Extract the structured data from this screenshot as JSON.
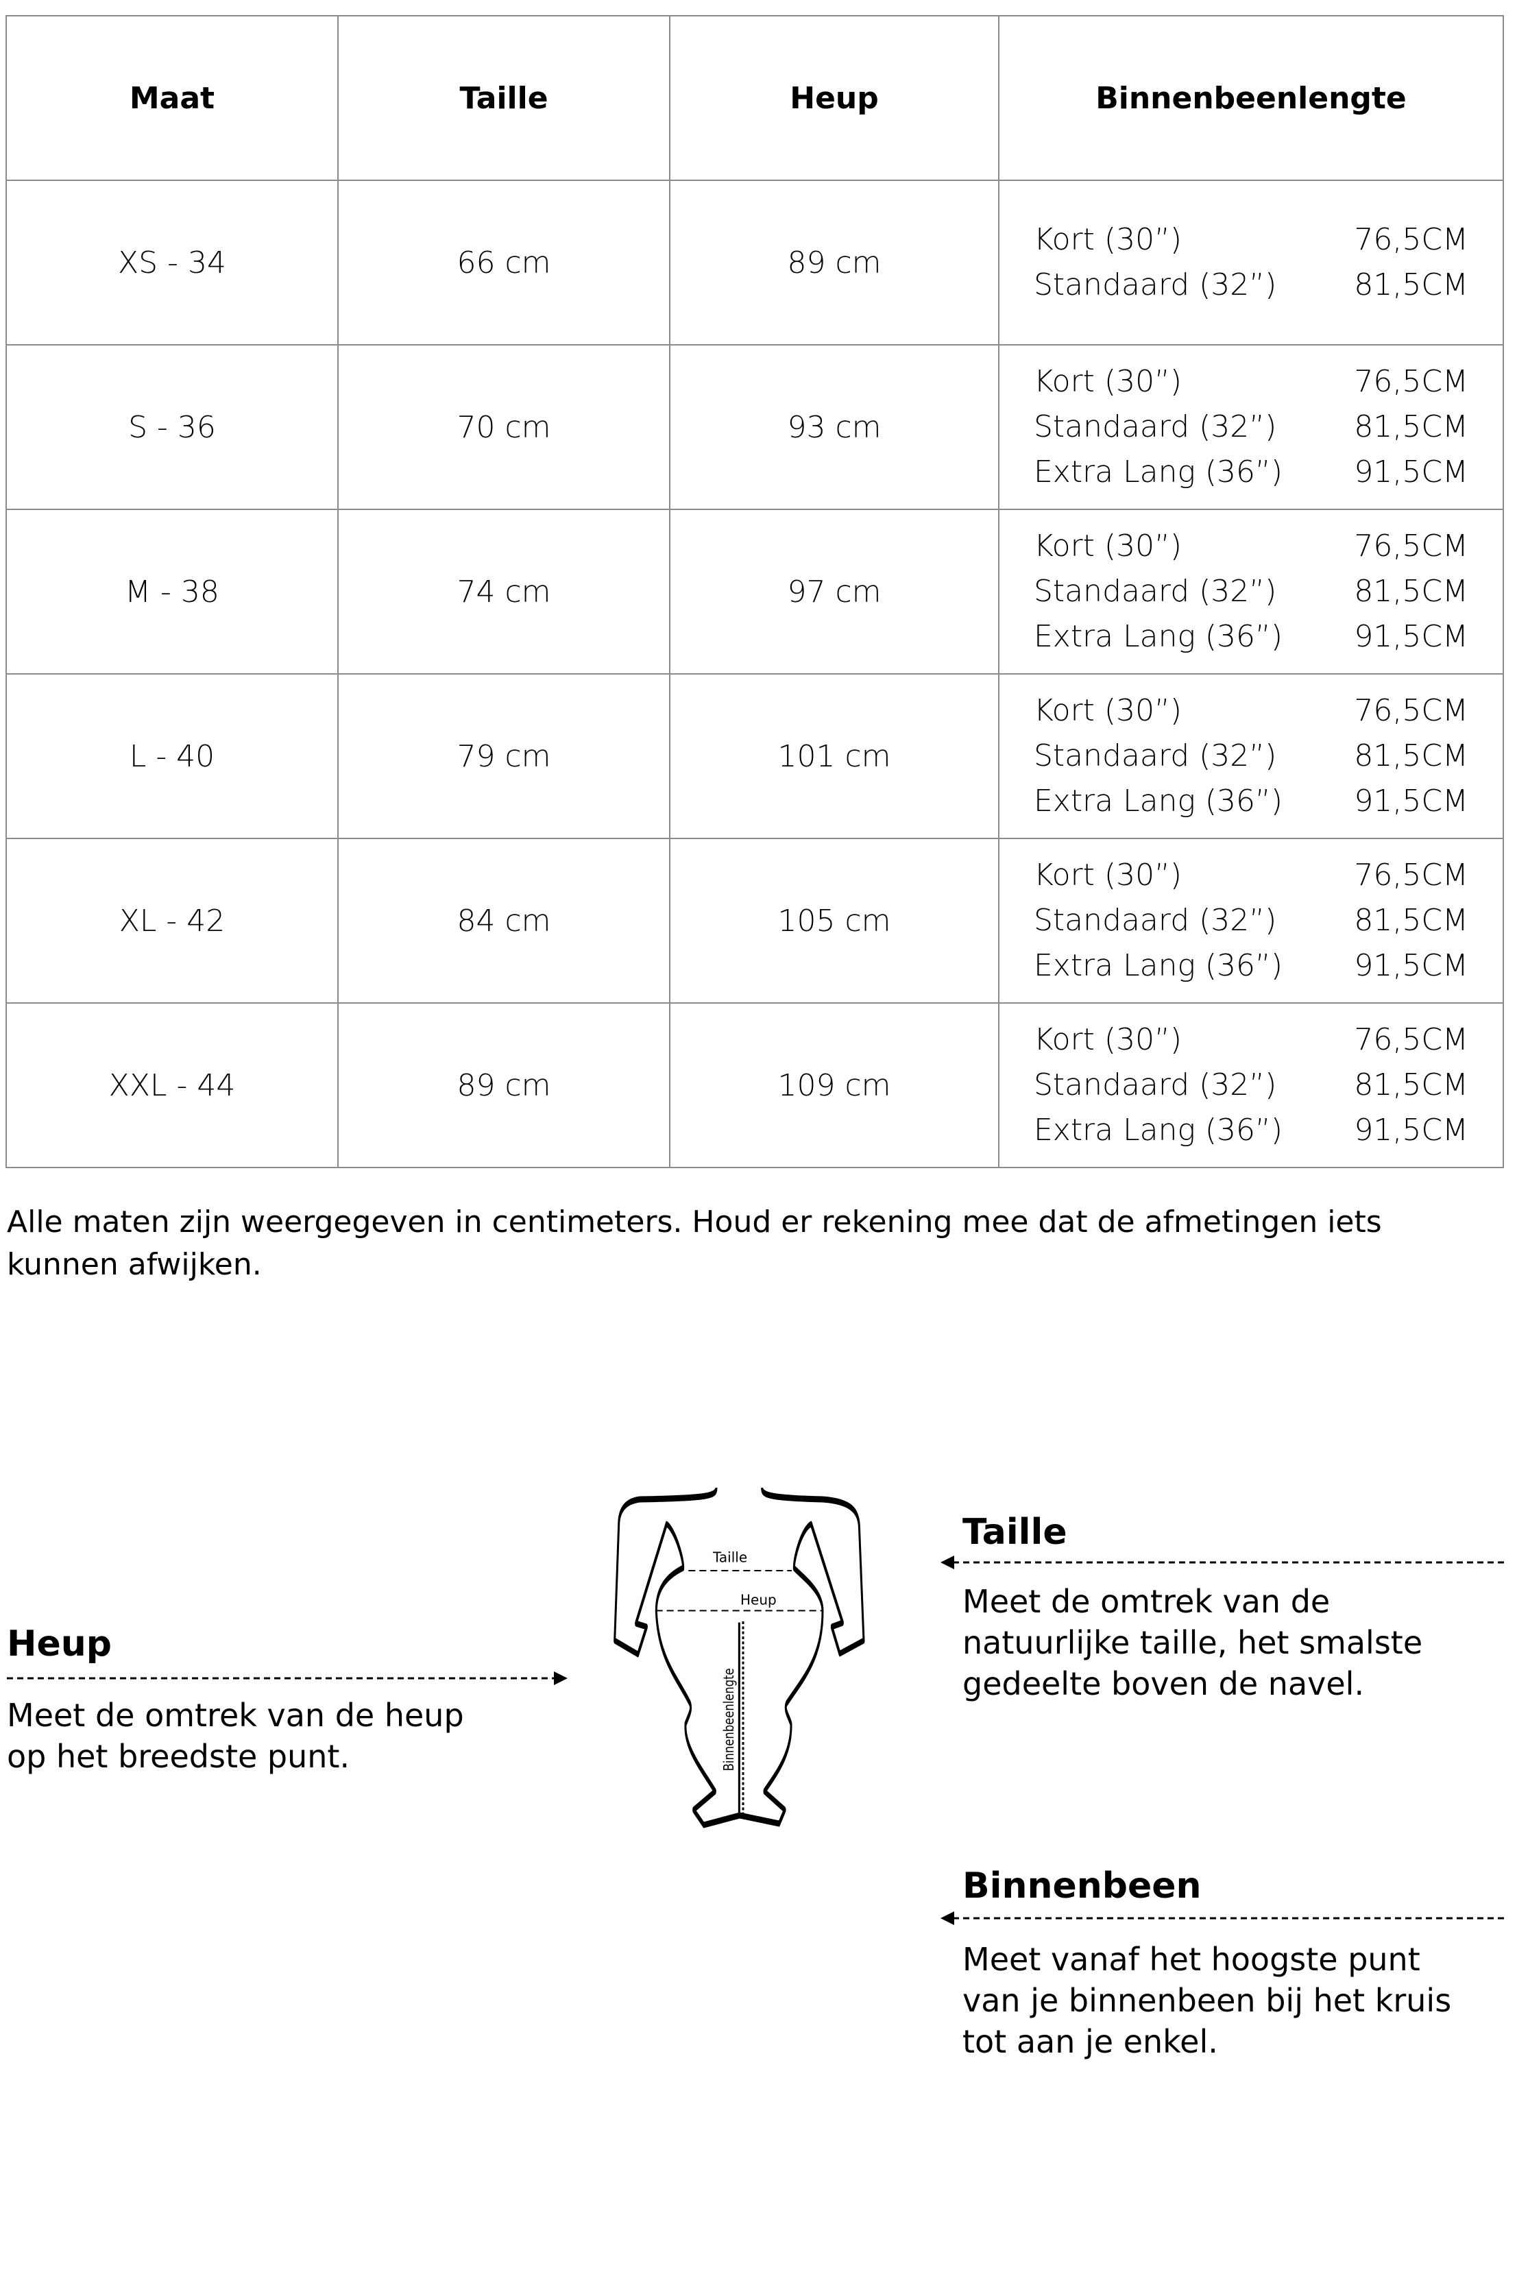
{
  "table": {
    "headers": [
      "Maat",
      "Taille",
      "Heup",
      "Binnenbeenlengte"
    ],
    "rows": [
      {
        "size": "XS - 34",
        "waist": "66 cm",
        "hip": "89 cm",
        "inseam": [
          [
            "Kort (30”)",
            "76,5CM"
          ],
          [
            "Standaard (32”)",
            "81,5CM"
          ]
        ]
      },
      {
        "size": "S - 36",
        "waist": "70 cm",
        "hip": "93 cm",
        "inseam": [
          [
            "Kort (30”)",
            "76,5CM"
          ],
          [
            "Standaard (32”)",
            "81,5CM"
          ],
          [
            "Extra Lang (36”)",
            "91,5CM"
          ]
        ]
      },
      {
        "size": "M - 38",
        "waist": "74 cm",
        "hip": "97 cm",
        "inseam": [
          [
            "Kort (30”)",
            "76,5CM"
          ],
          [
            "Standaard (32”)",
            "81,5CM"
          ],
          [
            "Extra Lang (36”)",
            "91,5CM"
          ]
        ]
      },
      {
        "size": "L - 40",
        "waist": "79 cm",
        "hip": "101 cm",
        "inseam": [
          [
            "Kort (30”)",
            "76,5CM"
          ],
          [
            "Standaard (32”)",
            "81,5CM"
          ],
          [
            "Extra Lang (36”)",
            "91,5CM"
          ]
        ]
      },
      {
        "size": "XL - 42",
        "waist": "84 cm",
        "hip": "105 cm",
        "inseam": [
          [
            "Kort (30”)",
            "76,5CM"
          ],
          [
            "Standaard (32”)",
            "81,5CM"
          ],
          [
            "Extra Lang (36”)",
            "91,5CM"
          ]
        ]
      },
      {
        "size": "XXL - 44",
        "waist": "89 cm",
        "hip": "109 cm",
        "inseam": [
          [
            "Kort (30”)",
            "76,5CM"
          ],
          [
            "Standaard (32”)",
            "81,5CM"
          ],
          [
            "Extra Lang (36”)",
            "91,5CM"
          ]
        ]
      }
    ]
  },
  "note": "Alle maten zijn weergegeven in centimeters. Houd er rekening mee dat de afmetingen iets kunnen afwijken.",
  "guide": {
    "heup": {
      "title": "Heup",
      "lines": [
        "Meet de omtrek van de heup",
        "op het breedste punt."
      ]
    },
    "taille": {
      "title": "Taille",
      "lines": [
        "Meet de omtrek van de",
        "natuurlijke taille, het smalste",
        "gedeelte boven de navel."
      ]
    },
    "binnenbeen": {
      "title": "Binnenbeen",
      "lines": [
        "Meet vanaf het hoogste punt",
        "van je binnenbeen bij het kruis",
        "tot aan je enkel."
      ]
    },
    "figure_labels": {
      "taille": "Taille",
      "heup": "Heup",
      "binnenbeen": "Binnenbeenlengte"
    }
  }
}
